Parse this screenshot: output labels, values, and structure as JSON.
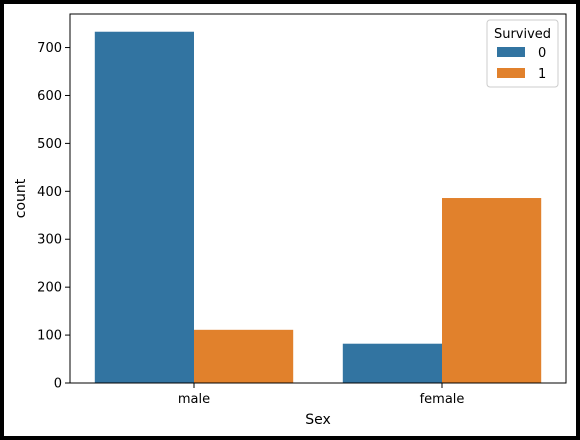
{
  "chart_data": {
    "type": "bar",
    "title": "",
    "xlabel": "Sex",
    "ylabel": "count",
    "categories": [
      "male",
      "female"
    ],
    "series": [
      {
        "name": "0",
        "values": [
          733,
          82
        ],
        "color": "#3274a1"
      },
      {
        "name": "1",
        "values": [
          111,
          386
        ],
        "color": "#e1812c"
      }
    ],
    "ylim": [
      0,
      770
    ],
    "yticks": [
      0,
      100,
      200,
      300,
      400,
      500,
      600,
      700
    ],
    "grid": false,
    "legend": {
      "title": "Survived",
      "position": "top-right"
    }
  }
}
